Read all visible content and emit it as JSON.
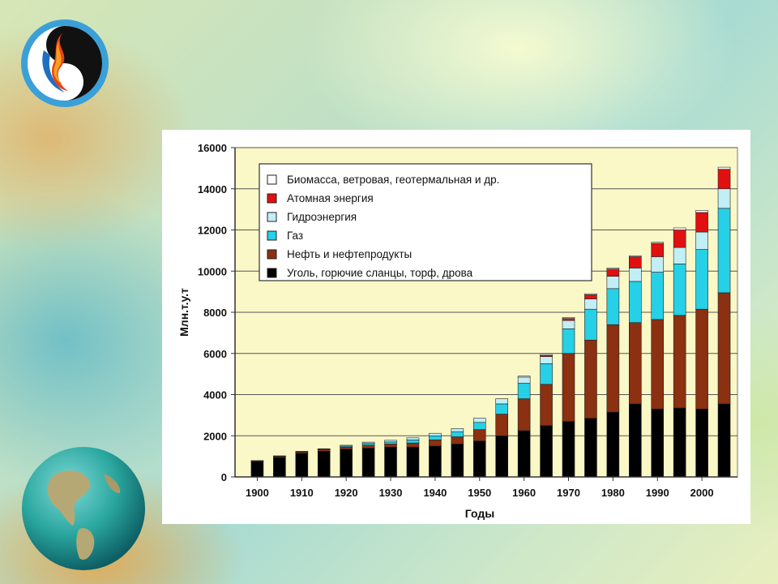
{
  "slide": {
    "logo_icon": "fire-water-logo-icon",
    "globe_icon": "earth-globe-icon"
  },
  "chart_data": {
    "type": "bar",
    "stacked": true,
    "xlabel": "Годы",
    "ylabel": "Млн.т.у.т",
    "ylim": [
      0,
      16000
    ],
    "yticks": [
      0,
      2000,
      4000,
      6000,
      8000,
      10000,
      12000,
      14000,
      16000
    ],
    "xtick_labels": [
      "1900",
      "1910",
      "1920",
      "1930",
      "1940",
      "1950",
      "1960",
      "1970",
      "1980",
      "1990",
      "2000"
    ],
    "grid": true,
    "legend_position": "top-left",
    "categories": [
      1900,
      1905,
      1910,
      1915,
      1920,
      1925,
      1930,
      1935,
      1940,
      1945,
      1950,
      1955,
      1960,
      1965,
      1970,
      1975,
      1980,
      1985,
      1990,
      1995,
      2000,
      2005
    ],
    "series": [
      {
        "name": "Уголь, горючие сланцы, торф, дрова",
        "color": "#000000",
        "values": [
          750,
          950,
          1150,
          1250,
          1350,
          1400,
          1450,
          1450,
          1500,
          1600,
          1750,
          2000,
          2250,
          2500,
          2700,
          2850,
          3150,
          3550,
          3300,
          3350,
          3300,
          3550
        ]
      },
      {
        "name": "Нефть и нефтепродукты",
        "color": "#8b3010",
        "values": [
          30,
          50,
          60,
          70,
          100,
          150,
          150,
          200,
          300,
          350,
          550,
          1050,
          1550,
          2000,
          3300,
          3800,
          4250,
          3950,
          4350,
          4500,
          4850,
          5400
        ]
      },
      {
        "name": "Газ",
        "color": "#26d0e6",
        "values": [
          10,
          15,
          20,
          30,
          50,
          80,
          100,
          150,
          200,
          250,
          350,
          500,
          750,
          1000,
          1200,
          1500,
          1750,
          2000,
          2300,
          2500,
          2900,
          4100
        ]
      },
      {
        "name": "Гидроэнергия",
        "color": "#c2eef5",
        "values": [
          5,
          10,
          15,
          20,
          40,
          60,
          80,
          100,
          120,
          150,
          200,
          250,
          300,
          350,
          400,
          500,
          600,
          650,
          750,
          800,
          850,
          950
        ]
      },
      {
        "name": "Атомная энергия",
        "color": "#e01010",
        "values": [
          0,
          0,
          0,
          0,
          0,
          0,
          0,
          0,
          0,
          0,
          0,
          0,
          0,
          50,
          100,
          200,
          350,
          550,
          650,
          850,
          950,
          950
        ]
      },
      {
        "name": "Биомасса, ветровая, геотермальная и др.",
        "color": "#ffffff",
        "values": [
          0,
          0,
          0,
          0,
          0,
          0,
          0,
          0,
          0,
          0,
          0,
          0,
          50,
          50,
          50,
          50,
          50,
          50,
          50,
          100,
          100,
          100
        ]
      }
    ],
    "legend_order": [
      5,
      4,
      3,
      2,
      1,
      0
    ]
  }
}
